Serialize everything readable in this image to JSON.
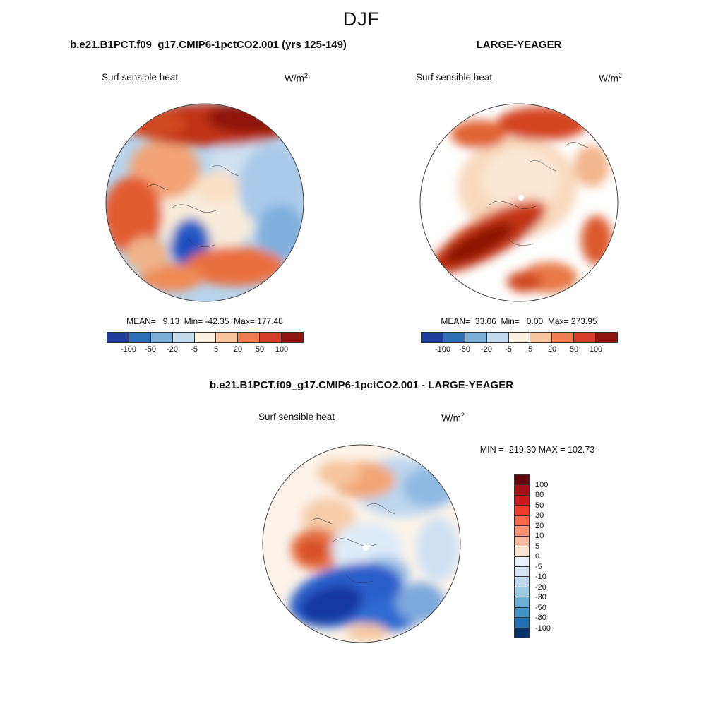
{
  "figure_title": "DJF",
  "panels": {
    "model": {
      "title": "b.e21.B1PCT.f09_g17.CMIP6-1pctCO2.001 (yrs 125-149)",
      "field_label": "Surf sensible heat",
      "units_base": "W/m",
      "units_exp": "2",
      "stats": "MEAN=   9.13  Min= -42.35  Max= 177.48"
    },
    "obs": {
      "title": "LARGE-YEAGER",
      "field_label": "Surf sensible heat",
      "units_base": "W/m",
      "units_exp": "2",
      "stats": "MEAN=  33.06  Min=   0.00  Max= 273.95"
    },
    "diff": {
      "title": "b.e21.B1PCT.f09_g17.CMIP6-1pctCO2.001 - LARGE-YEAGER",
      "field_label": "Surf sensible heat",
      "units_base": "W/m",
      "units_exp": "2",
      "minmax": "MIN = -219.30 MAX = 102.73"
    }
  },
  "colorbar_h": {
    "ticks": [
      "-100",
      "-50",
      "-20",
      "-5",
      "5",
      "20",
      "50",
      "100"
    ],
    "colors": [
      "#1f3d99",
      "#2f6db5",
      "#7aaed6",
      "#c4dcee",
      "#faf0e1",
      "#f8c49c",
      "#ef7e52",
      "#d43d29",
      "#8f1510"
    ]
  },
  "colorbar_v": {
    "ticks": [
      "100",
      "80",
      "50",
      "30",
      "20",
      "10",
      "5",
      "0",
      "-5",
      "-10",
      "-20",
      "-30",
      "-50",
      "-80",
      "-100"
    ],
    "colors": [
      "#67000d",
      "#a50f15",
      "#cb181d",
      "#ef3b2c",
      "#fb6a4a",
      "#fc9272",
      "#fcbba1",
      "#fde5d4",
      "#e9f1fa",
      "#d6e5f4",
      "#c0d8ee",
      "#9ecae1",
      "#6baed6",
      "#4292c6",
      "#2171b5",
      "#08306b"
    ]
  },
  "chart_data": [
    {
      "type": "heatmap",
      "subtype": "north-polar-stereographic-filled-contour-map",
      "season": "DJF",
      "title": "b.e21.B1PCT.f09_g17.CMIP6-1pctCO2.001 (yrs 125-149)",
      "field": "Surf sensible heat",
      "units": "W/m2",
      "stats": {
        "mean": 9.13,
        "min": -42.35,
        "max": 177.48
      },
      "contour_levels": [
        -100,
        -50,
        -20,
        -5,
        5,
        20,
        50,
        100
      ],
      "palette": "blue-white-red",
      "colorbar_position": "bottom"
    },
    {
      "type": "heatmap",
      "subtype": "north-polar-stereographic-filled-contour-map",
      "season": "DJF",
      "title": "LARGE-YEAGER",
      "field": "Surf sensible heat",
      "units": "W/m2",
      "stats": {
        "mean": 33.06,
        "min": 0.0,
        "max": 273.95
      },
      "contour_levels": [
        -100,
        -50,
        -20,
        -5,
        5,
        20,
        50,
        100
      ],
      "palette": "blue-white-red",
      "colorbar_position": "bottom"
    },
    {
      "type": "heatmap",
      "subtype": "north-polar-stereographic-filled-contour-map",
      "season": "DJF",
      "title": "b.e21.B1PCT.f09_g17.CMIP6-1pctCO2.001 - LARGE-YEAGER",
      "field": "Surf sensible heat",
      "units": "W/m2",
      "stats": {
        "min": -219.3,
        "max": 102.73
      },
      "contour_levels": [
        -100,
        -80,
        -50,
        -30,
        -20,
        -10,
        -5,
        0,
        5,
        10,
        20,
        30,
        50,
        80,
        100
      ],
      "palette": "blue-white-red",
      "colorbar_position": "right"
    }
  ]
}
